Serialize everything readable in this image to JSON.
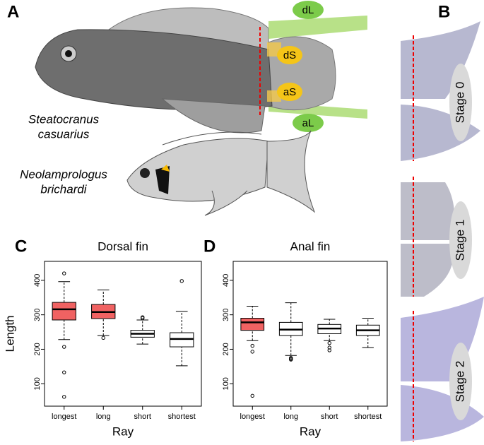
{
  "figure": {
    "panel_a": "A",
    "panel_b": "B",
    "fin_labels": [
      "dL",
      "dS",
      "aS",
      "aL"
    ],
    "species": [
      [
        "Steatocranus",
        "casuarius"
      ],
      [
        "Neolamprologus",
        "brichardi"
      ]
    ],
    "stages": [
      "Stage 0",
      "Stage 1",
      "Stage 2"
    ]
  },
  "chart_data": [
    {
      "type": "box",
      "panel_label": "C",
      "title": "Dorsal fin",
      "xlabel": "Ray",
      "ylabel": "Length",
      "categories": [
        "longest",
        "long",
        "short",
        "shortest"
      ],
      "box_colors": [
        "#f06262",
        "#f06262",
        "#ffffff",
        "#ffffff"
      ],
      "boxes": [
        {
          "min": 228,
          "q1": 285,
          "median": 316,
          "q3": 336,
          "max": 396,
          "outliers": [
            420,
            207,
            133,
            62
          ]
        },
        {
          "min": 240,
          "q1": 289,
          "median": 308,
          "q3": 330,
          "max": 372,
          "outliers": [
            233
          ]
        },
        {
          "min": 215,
          "q1": 235,
          "median": 245,
          "q3": 255,
          "max": 285,
          "outliers": [
            290,
            293
          ]
        },
        {
          "min": 152,
          "q1": 207,
          "median": 230,
          "q3": 248,
          "max": 310,
          "outliers": [
            398
          ]
        }
      ],
      "ylim": [
        35,
        455
      ],
      "yticks": [
        100,
        200,
        300,
        400
      ]
    },
    {
      "type": "box",
      "panel_label": "D",
      "title": "Anal fin",
      "xlabel": "Ray",
      "categories": [
        "longest",
        "long",
        "short",
        "shortest"
      ],
      "box_colors": [
        "#f06262",
        "#ffffff",
        "#ffffff",
        "#ffffff"
      ],
      "boxes": [
        {
          "min": 225,
          "q1": 255,
          "median": 278,
          "q3": 290,
          "max": 325,
          "outliers": [
            210,
            193,
            65
          ]
        },
        {
          "min": 182,
          "q1": 240,
          "median": 257,
          "q3": 278,
          "max": 335,
          "outliers": [
            175,
            170,
            172
          ]
        },
        {
          "min": 225,
          "q1": 245,
          "median": 260,
          "q3": 272,
          "max": 287,
          "outliers": [
            218,
            205,
            197
          ]
        },
        {
          "min": 205,
          "q1": 240,
          "median": 255,
          "q3": 270,
          "max": 290,
          "outliers": []
        }
      ],
      "ylim": [
        35,
        455
      ],
      "yticks": [
        100,
        200,
        300,
        400
      ]
    }
  ]
}
